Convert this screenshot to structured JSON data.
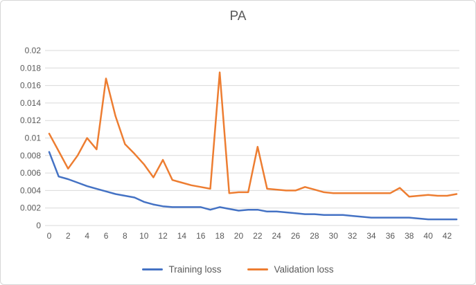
{
  "chart_data": {
    "type": "line",
    "title": "PA",
    "grid": true,
    "legend_position": "bottom",
    "ylim": [
      0,
      0.02
    ],
    "ytick_step": 0.002,
    "y_tick_labels": [
      "0",
      "0.002",
      "0.004",
      "0.006",
      "0.008",
      "0.01",
      "0.012",
      "0.014",
      "0.016",
      "0.018",
      "0.02"
    ],
    "x_tick_step": 2,
    "x_tick_labels": [
      0,
      2,
      4,
      6,
      8,
      10,
      12,
      14,
      16,
      18,
      20,
      22,
      24,
      26,
      28,
      30,
      32,
      34,
      36,
      38,
      40,
      42
    ],
    "x": [
      0,
      1,
      2,
      3,
      4,
      5,
      6,
      7,
      8,
      9,
      10,
      11,
      12,
      13,
      14,
      15,
      16,
      17,
      18,
      19,
      20,
      21,
      22,
      23,
      24,
      25,
      26,
      27,
      28,
      29,
      30,
      31,
      32,
      33,
      34,
      35,
      36,
      37,
      38,
      39,
      40,
      41,
      42,
      43
    ],
    "series": [
      {
        "name": "Training loss",
        "color": "#4472C4",
        "values": [
          0.0084,
          0.0056,
          0.0053,
          0.0049,
          0.0045,
          0.0042,
          0.0039,
          0.0036,
          0.0034,
          0.0032,
          0.0027,
          0.0024,
          0.0022,
          0.0021,
          0.0021,
          0.0021,
          0.0021,
          0.0018,
          0.0021,
          0.0019,
          0.0017,
          0.0018,
          0.0018,
          0.0016,
          0.0016,
          0.0015,
          0.0014,
          0.0013,
          0.0013,
          0.0012,
          0.0012,
          0.0012,
          0.0011,
          0.001,
          0.0009,
          0.0009,
          0.0009,
          0.0009,
          0.0009,
          0.0008,
          0.0007,
          0.0007,
          0.0007,
          0.0007
        ]
      },
      {
        "name": "Validation loss",
        "color": "#ED7D31",
        "values": [
          0.0105,
          0.0085,
          0.0065,
          0.008,
          0.01,
          0.0087,
          0.0168,
          0.0125,
          0.0093,
          0.0082,
          0.007,
          0.0055,
          0.0075,
          0.0052,
          0.0049,
          0.0046,
          0.0044,
          0.0042,
          0.0175,
          0.0037,
          0.0038,
          0.0038,
          0.009,
          0.0042,
          0.0041,
          0.004,
          0.004,
          0.0044,
          0.0041,
          0.0038,
          0.0037,
          0.0037,
          0.0037,
          0.0037,
          0.0037,
          0.0037,
          0.0037,
          0.0043,
          0.0033,
          0.0034,
          0.0035,
          0.0034,
          0.0034,
          0.0036
        ]
      }
    ]
  }
}
